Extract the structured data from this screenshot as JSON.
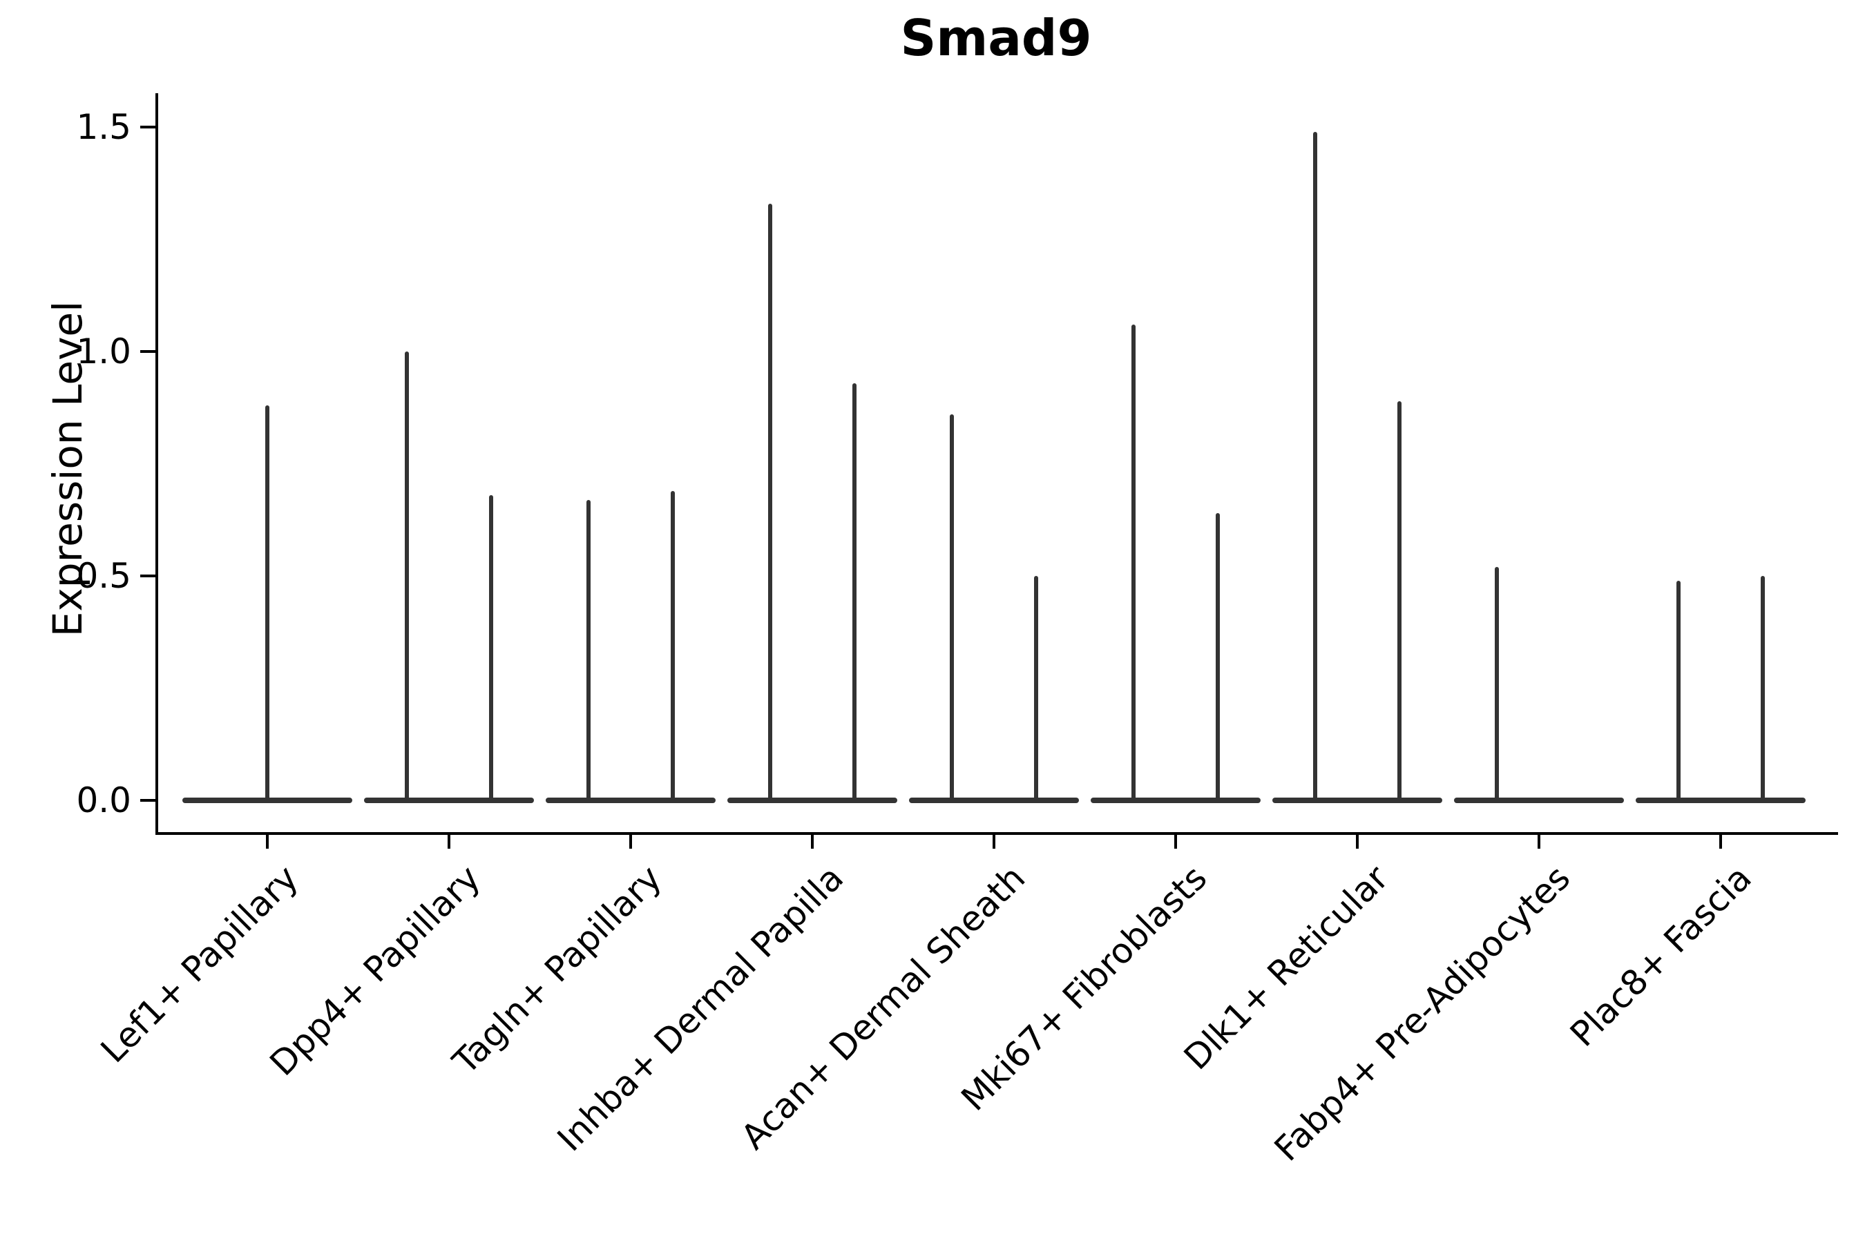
{
  "title": "Smad9",
  "axes": {
    "ylabel": "Expression Level",
    "yticks": [
      {
        "label": "1.5",
        "value": 1.5
      },
      {
        "label": "1.0",
        "value": 1.0
      },
      {
        "label": "0.5",
        "value": 0.5
      },
      {
        "label": "0.0",
        "value": 0.0
      }
    ]
  },
  "colors": {
    "violin": "#333333",
    "axis": "#000000",
    "text": "#000000",
    "background": "#ffffff"
  },
  "chart_data": {
    "type": "violin",
    "title": "Smad9",
    "xlabel": "",
    "ylabel": "Expression Level",
    "ylim": [
      -0.07,
      1.57
    ],
    "yticks": [
      0.0,
      0.5,
      1.0,
      1.5
    ],
    "grid": false,
    "legend": false,
    "description": "Needle-shaped violins: wide flat base at expression 0 with thin spikes rising to the maximum expression value; one or two spikes per cell-type group.",
    "categories": [
      "Lef1+ Papillary",
      "Dpp4+ Papillary",
      "Tagln+ Papillary",
      "Inhba+ Dermal Papilla",
      "Acan+ Dermal Sheath",
      "Mki67+ Fibroblasts",
      "Dlk1+ Reticular",
      "Fabp4+ Pre-Adipocytes",
      "Plac8+ Fascia"
    ],
    "groups": [
      {
        "label": "Lef1+ Papillary",
        "spikes": [
          {
            "offset": 0,
            "max": 0.88
          }
        ]
      },
      {
        "label": "Dpp4+ Papillary",
        "spikes": [
          {
            "offset": -61,
            "max": 1.0
          },
          {
            "offset": 61,
            "max": 0.68
          }
        ]
      },
      {
        "label": "Tagln+ Papillary",
        "spikes": [
          {
            "offset": -61,
            "max": 0.67
          },
          {
            "offset": 61,
            "max": 0.69
          }
        ]
      },
      {
        "label": "Inhba+ Dermal Papilla",
        "spikes": [
          {
            "offset": -61,
            "max": 1.33
          },
          {
            "offset": 61,
            "max": 0.93
          }
        ]
      },
      {
        "label": "Acan+ Dermal Sheath",
        "spikes": [
          {
            "offset": -61,
            "max": 0.86
          },
          {
            "offset": 61,
            "max": 0.5
          }
        ]
      },
      {
        "label": "Mki67+ Fibroblasts",
        "spikes": [
          {
            "offset": -61,
            "max": 1.06
          },
          {
            "offset": 61,
            "max": 0.64
          }
        ]
      },
      {
        "label": "Dlk1+ Reticular",
        "spikes": [
          {
            "offset": -61,
            "max": 1.49
          },
          {
            "offset": 61,
            "max": 0.89
          }
        ]
      },
      {
        "label": "Fabp4+ Pre-Adipocytes",
        "spikes": [
          {
            "offset": -61,
            "max": 0.52
          }
        ]
      },
      {
        "label": "Plac8+ Fascia",
        "spikes": [
          {
            "offset": -61,
            "max": 0.49
          },
          {
            "offset": 61,
            "max": 0.5
          }
        ]
      }
    ],
    "base_halfwidth": 123
  }
}
